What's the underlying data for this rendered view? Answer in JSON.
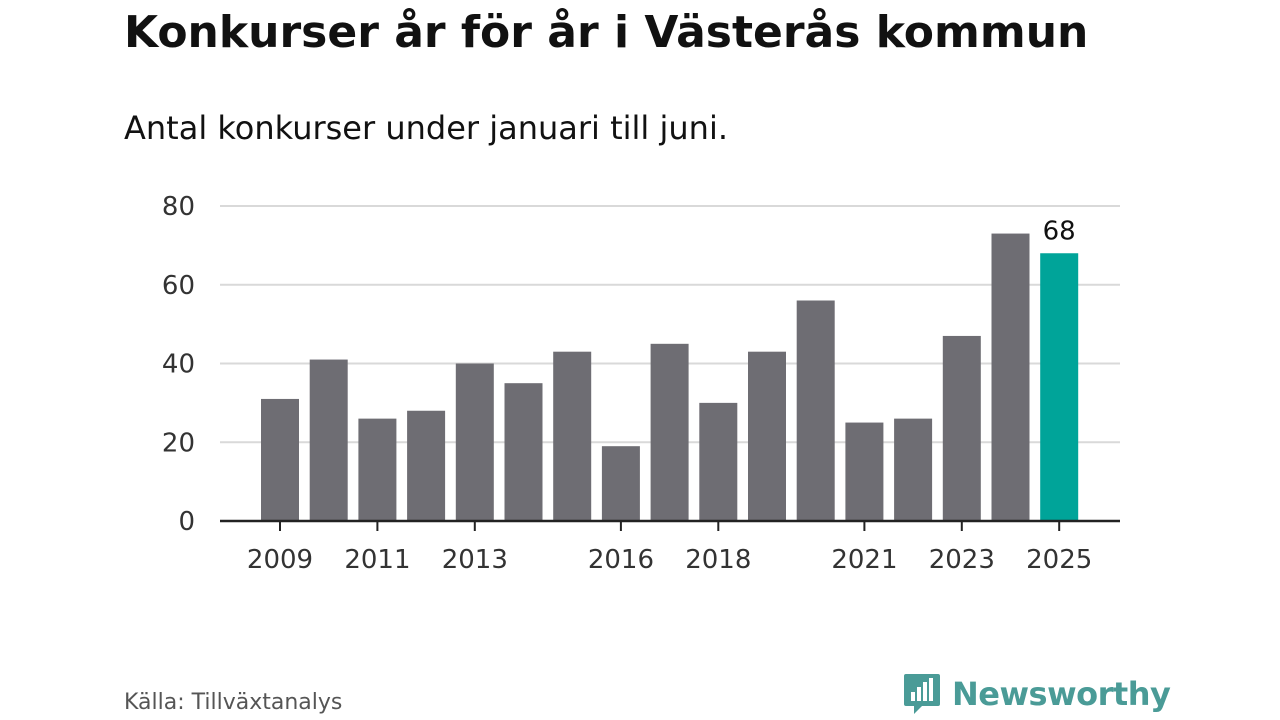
{
  "header": {
    "title": "Konkurser år för år i Västerås kommun",
    "subtitle": "Antal konkurser under januari till juni."
  },
  "footer": {
    "source": "Källa: Tillväxtanalys",
    "brand": "Newsworthy",
    "brand_color": "#4a9b97",
    "brand_icon": "bar-chart-speech-bubble-icon"
  },
  "colors": {
    "bar": "#6e6d73",
    "highlight": "#00a499",
    "grid": "#d9d9d9",
    "axis": "#222222"
  },
  "chart_data": {
    "type": "bar",
    "title": "Konkurser år för år i Västerås kommun",
    "subtitle": "Antal konkurser under januari till juni.",
    "xlabel": "",
    "ylabel": "",
    "categories": [
      "2009",
      "2010",
      "2011",
      "2012",
      "2013",
      "2014",
      "2015",
      "2016",
      "2017",
      "2018",
      "2019",
      "2020",
      "2021",
      "2022",
      "2023",
      "2024",
      "2025"
    ],
    "values": [
      31,
      41,
      26,
      28,
      40,
      35,
      43,
      19,
      45,
      30,
      43,
      56,
      25,
      26,
      47,
      73,
      68
    ],
    "ylim": [
      0,
      80
    ],
    "yticks": [
      "0",
      "20",
      "40",
      "60",
      "80"
    ],
    "xtick_labels": [
      "2009",
      "",
      "2011",
      "",
      "2013",
      "",
      "",
      "2016",
      "",
      "2018",
      "",
      "",
      "2021",
      "",
      "2023",
      "",
      "2025"
    ],
    "highlight_index": 16,
    "data_labels": [
      {
        "index": 16,
        "text": "68"
      }
    ],
    "grid": true,
    "legend": "none"
  }
}
